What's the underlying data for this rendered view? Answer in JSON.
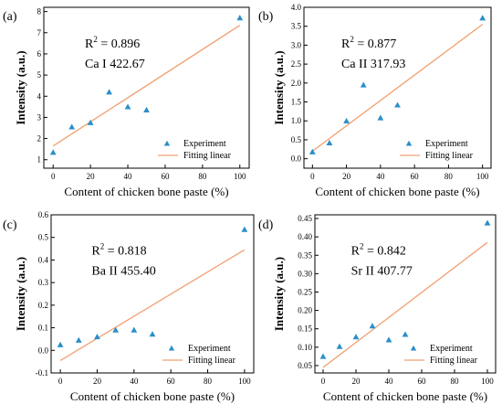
{
  "chart_data": [
    {
      "type": "scatter",
      "panel_label": "(a)",
      "xlabel": "Content of chicken bone paste (%)",
      "ylabel": "Intensity (a.u.)",
      "xlim": [
        -5,
        105
      ],
      "ylim": [
        0.6,
        8.2
      ],
      "xticks": [
        0,
        20,
        40,
        60,
        80,
        100
      ],
      "yticks": [
        1,
        2,
        3,
        4,
        5,
        6,
        7,
        8
      ],
      "ytick_labels": [
        "1",
        "2",
        "3",
        "4",
        "5",
        "6",
        "7",
        "8"
      ],
      "r2_label": "R",
      "r2_value": "= 0.896",
      "line_label": "Ca I 422.67",
      "series": [
        {
          "name": "Experiment",
          "x": [
            0,
            10,
            20,
            30,
            40,
            50,
            100
          ],
          "y": [
            1.35,
            2.55,
            2.75,
            4.2,
            3.5,
            3.35,
            7.7
          ]
        },
        {
          "name": "Fitting linear",
          "x": [
            0,
            100
          ],
          "y": [
            1.65,
            7.35
          ]
        }
      ],
      "legend_position": "bottom-right",
      "grid": false
    },
    {
      "type": "scatter",
      "panel_label": "(b)",
      "xlabel": "Content of chicken bone paste (%)",
      "ylabel": "Intensity (a.u.)",
      "xlim": [
        -5,
        105
      ],
      "ylim": [
        -0.25,
        4.0
      ],
      "xticks": [
        0,
        20,
        40,
        60,
        80,
        100
      ],
      "yticks": [
        0,
        0.5,
        1,
        1.5,
        2,
        2.5,
        3,
        3.5,
        4
      ],
      "ytick_labels": [
        "0.0",
        "0.5",
        "1.0",
        "1.5",
        "2.0",
        "2.5",
        "3.0",
        "3.5",
        "4.0"
      ],
      "r2_label": "R",
      "r2_value": "= 0.877",
      "line_label": "Ca II 317.93",
      "series": [
        {
          "name": "Experiment",
          "x": [
            0,
            10,
            20,
            30,
            40,
            50,
            100
          ],
          "y": [
            0.18,
            0.42,
            1.0,
            1.95,
            1.08,
            1.42,
            3.72
          ]
        },
        {
          "name": "Fitting linear",
          "x": [
            0,
            100
          ],
          "y": [
            0.2,
            3.55
          ]
        }
      ],
      "legend_position": "bottom-right",
      "grid": false
    },
    {
      "type": "scatter",
      "panel_label": "(c)",
      "xlabel": "Content of chicken bone paste (%)",
      "ylabel": "Intensity (a.u.)",
      "xlim": [
        -5,
        105
      ],
      "ylim": [
        -0.1,
        0.6
      ],
      "xticks": [
        0,
        20,
        40,
        60,
        80,
        100
      ],
      "yticks": [
        -0.1,
        0,
        0.1,
        0.2,
        0.3,
        0.4,
        0.5,
        0.6
      ],
      "ytick_labels": [
        "-0.1",
        "0.0",
        "0.1",
        "0.2",
        "0.3",
        "0.4",
        "0.5",
        "0.6"
      ],
      "r2_label": "R",
      "r2_value": "= 0.818",
      "line_label": "Ba II 455.40",
      "series": [
        {
          "name": "Experiment",
          "x": [
            0,
            10,
            20,
            30,
            40,
            50,
            100
          ],
          "y": [
            0.025,
            0.045,
            0.06,
            0.09,
            0.09,
            0.072,
            0.535
          ]
        },
        {
          "name": "Fitting linear",
          "x": [
            0,
            100
          ],
          "y": [
            -0.045,
            0.445
          ]
        }
      ],
      "legend_position": "bottom-right",
      "grid": false
    },
    {
      "type": "scatter",
      "panel_label": "(d)",
      "xlabel": "Content of chicken bone paste (%)",
      "ylabel": "Intensity (a.u.)",
      "xlim": [
        -5,
        105
      ],
      "ylim": [
        0.03,
        0.46
      ],
      "xticks": [
        0,
        20,
        40,
        60,
        80,
        100
      ],
      "yticks": [
        0.05,
        0.1,
        0.15,
        0.2,
        0.25,
        0.3,
        0.35,
        0.4,
        0.45
      ],
      "ytick_labels": [
        "0.05",
        "0.10",
        "0.15",
        "0.20",
        "0.25",
        "0.30",
        "0.35",
        "0.40",
        "0.45"
      ],
      "r2_label": "R",
      "r2_value": "= 0.842",
      "line_label": "Sr II 407.77",
      "series": [
        {
          "name": "Experiment",
          "x": [
            0,
            10,
            20,
            30,
            40,
            50,
            100
          ],
          "y": [
            0.075,
            0.102,
            0.128,
            0.158,
            0.12,
            0.135,
            0.438
          ]
        },
        {
          "name": "Fitting linear",
          "x": [
            0,
            100
          ],
          "y": [
            0.045,
            0.385
          ]
        }
      ],
      "legend_position": "bottom-right",
      "grid": false
    }
  ],
  "colors": {
    "marker": "#2a8fc9",
    "fit_line": "#f0a070",
    "axis": "#000000"
  }
}
